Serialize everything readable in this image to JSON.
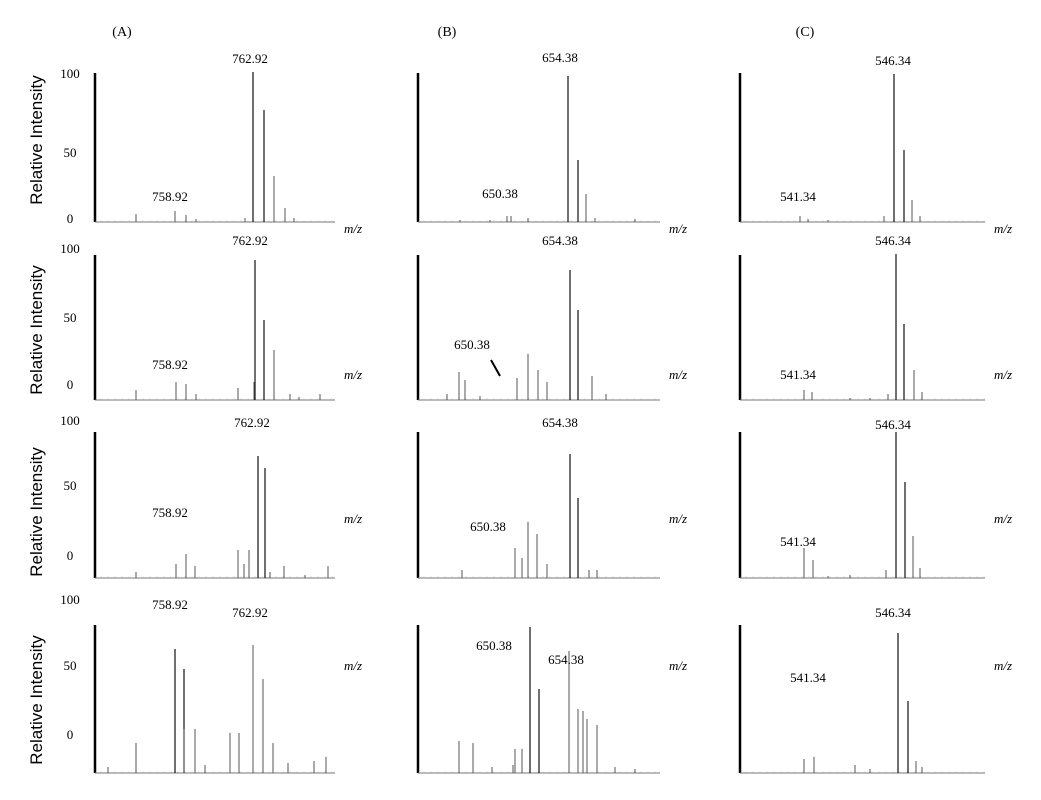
{
  "panel_labels": [
    "(A)",
    "(B)",
    "(C)"
  ],
  "chart_data": {
    "type": "mass-spectrum-grid",
    "ylabel": "Relative Intensity",
    "xlabel": "m/z",
    "ytick_labels": [
      "100",
      "50",
      "0"
    ],
    "columns": [
      {
        "label": "(A)",
        "main_peak": "762.92",
        "minor_peak": "758.92"
      },
      {
        "label": "(B)",
        "main_peak": "654.38",
        "minor_peak": "650.38"
      },
      {
        "label": "(C)",
        "main_peak": "546.34",
        "minor_peak": "541.34"
      }
    ],
    "rows": 4,
    "ylim": [
      0,
      100
    ],
    "yticks_shown_in_column": "(A)"
  }
}
